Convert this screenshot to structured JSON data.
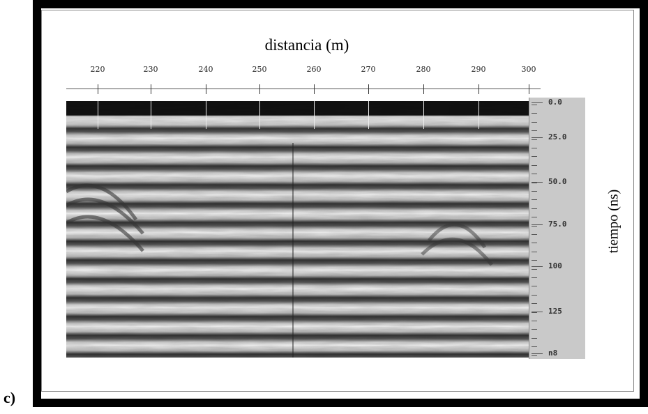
{
  "panel_label": "c)",
  "x_axis": {
    "title": "distancia (m)",
    "ticks": [
      "220",
      "230",
      "240",
      "250",
      "260",
      "270",
      "280",
      "290",
      "300"
    ]
  },
  "y_axis": {
    "title": "tiempo (ns)",
    "ticks": [
      "0.0",
      "25.0",
      "50.0",
      "75.0",
      "100",
      "125",
      "n8"
    ]
  }
}
